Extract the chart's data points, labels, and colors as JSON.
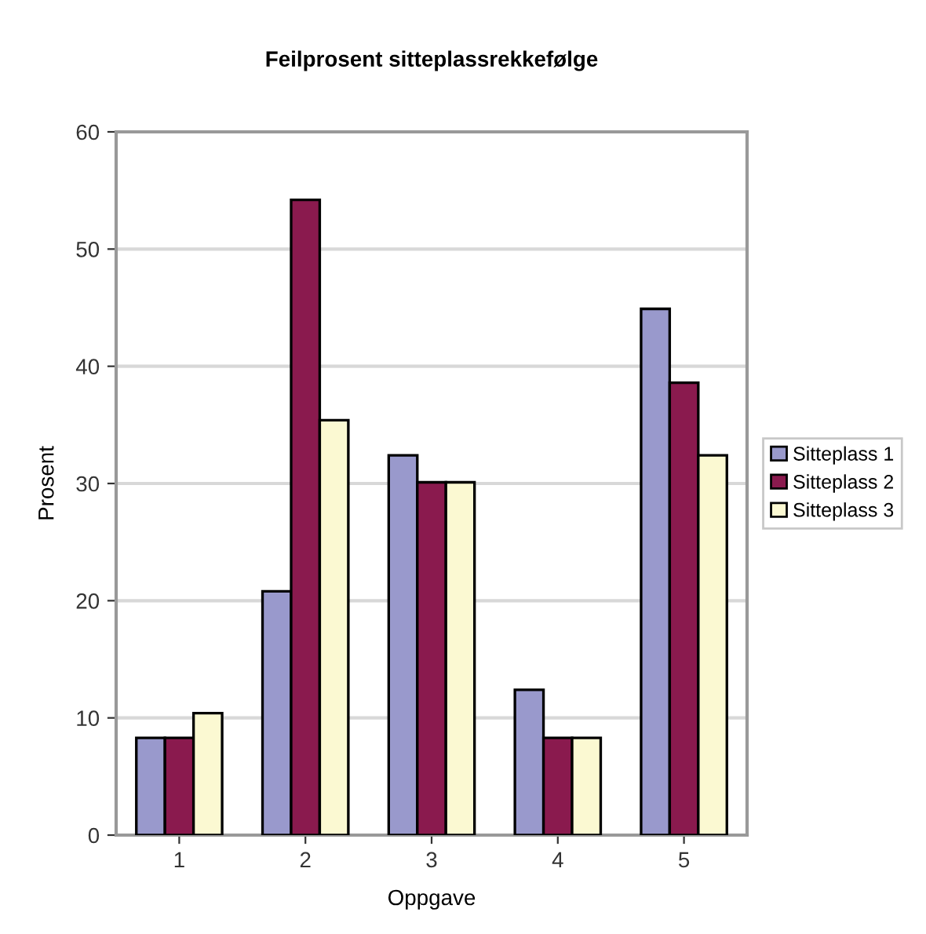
{
  "chart_data": {
    "type": "bar",
    "title": "Feilprosent sitteplassrekkefølge",
    "xlabel": "Oppgave",
    "ylabel": "Prosent",
    "categories": [
      "1",
      "2",
      "3",
      "4",
      "5"
    ],
    "series": [
      {
        "name": "Sitteplass 1",
        "color": "#9999cc",
        "values": [
          8.3,
          20.8,
          32.4,
          12.4,
          44.9
        ]
      },
      {
        "name": "Sitteplass 2",
        "color": "#8a1a4e",
        "values": [
          8.3,
          54.2,
          30.1,
          8.3,
          38.6
        ]
      },
      {
        "name": "Sitteplass 3",
        "color": "#fbf9d2",
        "values": [
          10.4,
          35.4,
          30.1,
          8.3,
          32.4
        ]
      }
    ],
    "ylim": [
      0,
      60
    ],
    "yticks": [
      0,
      10,
      20,
      30,
      40,
      50,
      60
    ],
    "grid": "y",
    "legend": "right"
  }
}
